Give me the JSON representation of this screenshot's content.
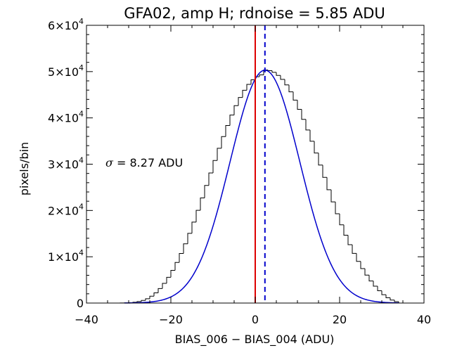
{
  "chart_data": {
    "type": "line",
    "title": "GFA02, amp H; rdnoise = 5.85 ADU",
    "xlabel": "BIAS_006 − BIAS_004 (ADU)",
    "ylabel": "pixels/bin",
    "xlim": [
      -40,
      40
    ],
    "ylim": [
      0,
      60000
    ],
    "x_ticks": [
      -40,
      -20,
      0,
      20,
      40
    ],
    "x_tick_labels": [
      "−40",
      "−20",
      "0",
      "20",
      "40"
    ],
    "y_ticks": [
      0,
      10000,
      20000,
      30000,
      40000,
      50000,
      60000
    ],
    "y_tick_labels": [
      {
        "mantissa": "0",
        "exponent": ""
      },
      {
        "mantissa": "1×10",
        "exponent": "4"
      },
      {
        "mantissa": "2×10",
        "exponent": "4"
      },
      {
        "mantissa": "3×10",
        "exponent": "4"
      },
      {
        "mantissa": "4×10",
        "exponent": "4"
      },
      {
        "mantissa": "5×10",
        "exponent": "4"
      },
      {
        "mantissa": "6×10",
        "exponent": "4"
      }
    ],
    "annotation": "σ = 8.27 ADU",
    "histogram": {
      "bin_width": 1,
      "x_start": -32,
      "x_end": 34,
      "color": "#000000",
      "counts": [
        18,
        40,
        84,
        166,
        315,
        560,
        935,
        1480,
        2210,
        3140,
        4260,
        5560,
        7070,
        8780,
        10700,
        12790,
        15050,
        17480,
        20040,
        22700,
        25400,
        28100,
        30800,
        33430,
        35960,
        38360,
        40610,
        42640,
        44420,
        45960,
        47240,
        48220,
        48900,
        49300,
        50360,
        50210,
        49850,
        49180,
        48320,
        47130,
        45620,
        43850,
        41840,
        39680,
        37380,
        34950,
        32420,
        29820,
        27150,
        24480,
        21850,
        19300,
        16900,
        14660,
        12600,
        10720,
        9000,
        7440,
        6030,
        4770,
        3650,
        2660,
        1810,
        1140,
        640,
        300
      ]
    },
    "fit": {
      "name": "gaussian fit",
      "mean": 2.3,
      "sigma": 8.27,
      "peak": 50300,
      "color": "#0000cc"
    },
    "vlines": [
      {
        "x": 0,
        "color": "#dd0000",
        "style": "solid"
      },
      {
        "x": 2.3,
        "color": "#0000cc",
        "style": "dashed"
      }
    ],
    "grid": false
  }
}
